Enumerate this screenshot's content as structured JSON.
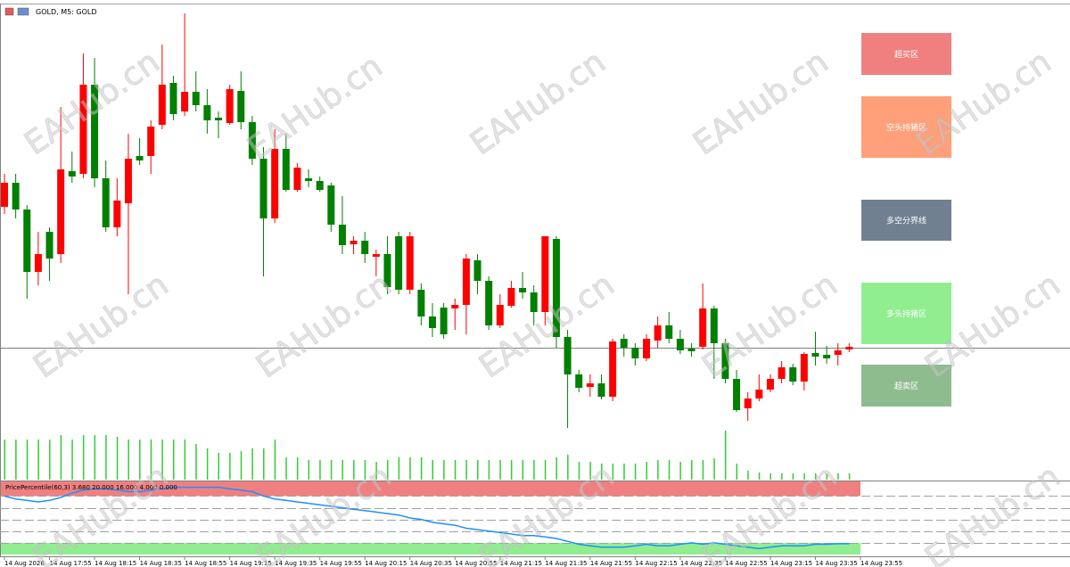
{
  "chart_data": [
    {
      "type": "candlestick",
      "title": "GOLD, M5: GOLD",
      "open": [
        308,
        335,
        305,
        235,
        280,
        255,
        348,
        345,
        445,
        340,
        285,
        312,
        365,
        365,
        400,
        447,
        415,
        437,
        422,
        408,
        402,
        438,
        403,
        362,
        295,
        373,
        327,
        340,
        337,
        332,
        288,
        266,
        270,
        252,
        255,
        275,
        215,
        215,
        185,
        195,
        194,
        198,
        248,
        225,
        175,
        197,
        217,
        212,
        190,
        272,
        162,
        120,
        106,
        110,
        95,
        160,
        150,
        138,
        158,
        175,
        160,
        149,
        151,
        194,
        155,
        115,
        82,
        93,
        103,
        115,
        128,
        112,
        144,
        142,
        142,
        148
      ],
      "high": [
        345,
        345,
        310,
        280,
        285,
        420,
        370,
        480,
        475,
        360,
        340,
        390,
        385,
        405,
        490,
        455,
        525,
        460,
        440,
        415,
        445,
        460,
        410,
        375,
        395,
        390,
        357,
        350,
        342,
        335,
        320,
        275,
        280,
        260,
        275,
        280,
        280,
        222,
        200,
        200,
        205,
        255,
        255,
        230,
        210,
        225,
        235,
        220,
        275,
        275,
        170,
        125,
        120,
        120,
        160,
        165,
        155,
        165,
        185,
        190,
        170,
        155,
        222,
        197,
        160,
        125,
        100,
        120,
        120,
        135,
        132,
        145,
        168,
        152,
        155,
        155
      ],
      "low": [
        300,
        295,
        205,
        220,
        225,
        245,
        335,
        340,
        330,
        280,
        275,
        210,
        355,
        345,
        395,
        405,
        410,
        415,
        390,
        385,
        400,
        395,
        355,
        230,
        290,
        325,
        325,
        330,
        325,
        280,
        255,
        255,
        245,
        230,
        210,
        210,
        210,
        175,
        162,
        160,
        170,
        165,
        210,
        170,
        172,
        195,
        205,
        175,
        175,
        150,
        60,
        100,
        95,
        92,
        90,
        140,
        130,
        135,
        150,
        155,
        143,
        140,
        148,
        115,
        110,
        78,
        68,
        90,
        100,
        110,
        108,
        102,
        130,
        132,
        130,
        145
      ],
      "close": [
        335,
        305,
        235,
        255,
        250,
        350,
        342,
        445,
        340,
        285,
        315,
        362,
        360,
        398,
        445,
        412,
        437,
        422,
        405,
        405,
        440,
        403,
        362,
        295,
        373,
        327,
        352,
        337,
        327,
        288,
        265,
        270,
        255,
        255,
        218,
        215,
        275,
        185,
        172,
        165,
        198,
        250,
        225,
        175,
        198,
        217,
        212,
        190,
        275,
        162,
        120,
        105,
        110,
        95,
        157,
        150,
        138,
        160,
        175,
        160,
        147,
        146,
        194,
        155,
        115,
        80,
        93,
        103,
        115,
        128,
        112,
        143,
        140,
        138,
        147,
        151
      ],
      "up_color": "#ff0000",
      "down_color": "#008000",
      "ylim": [
        0,
        535
      ],
      "xlim": [
        0,
        76
      ],
      "price_line": 150
    },
    {
      "type": "bar",
      "values": [
        45,
        45,
        45,
        45,
        45,
        50,
        45,
        50,
        50,
        50,
        48,
        45,
        45,
        45,
        45,
        45,
        45,
        40,
        35,
        30,
        30,
        32,
        35,
        35,
        45,
        25,
        25,
        22,
        22,
        22,
        22,
        22,
        22,
        20,
        22,
        25,
        25,
        25,
        22,
        22,
        22,
        22,
        22,
        22,
        22,
        22,
        22,
        22,
        22,
        25,
        28,
        20,
        20,
        18,
        18,
        18,
        18,
        20,
        22,
        22,
        20,
        22,
        22,
        24,
        55,
        18,
        10,
        8,
        7,
        7,
        7,
        7,
        7,
        7,
        7,
        7
      ],
      "color": "#32cd32",
      "ylim": [
        0,
        60
      ],
      "xlim": [
        0,
        76
      ]
    },
    {
      "type": "line",
      "title": "PricePercentile(60,3) 3.680 20.000 16.000 4.000 0.000",
      "values": [
        20,
        19,
        18.5,
        18,
        18.5,
        19.5,
        21,
        22,
        22.5,
        22.5,
        22,
        21.5,
        21.5,
        22,
        22.5,
        23,
        23,
        23,
        23,
        23,
        22.5,
        22,
        21.5,
        20,
        19,
        18.5,
        18,
        17.5,
        17,
        16.5,
        16,
        15.5,
        15,
        14.5,
        14,
        13.5,
        12.5,
        12,
        11,
        10.5,
        10,
        9,
        8.5,
        8,
        7.5,
        7,
        6.5,
        6.5,
        6,
        5.5,
        4.5,
        3.5,
        3,
        2.5,
        2.5,
        2.5,
        3,
        3.5,
        3,
        3,
        3.5,
        4,
        3.5,
        4,
        3.5,
        3,
        2.5,
        2,
        2.5,
        3,
        3,
        3,
        3.5,
        3.5,
        3.7,
        3.68
      ],
      "color": "#1e90ff",
      "ylim": [
        0,
        25
      ],
      "xlim": [
        0,
        76
      ],
      "levels": [
        20,
        16,
        12,
        8,
        4
      ],
      "upper_band_color": "#f08080",
      "lower_band_color": "#90ee90",
      "xticks": [
        {
          "value": 0,
          "label": "14 Aug 2026"
        },
        {
          "value": 4,
          "label": "14 Aug 17:55"
        },
        {
          "value": 8,
          "label": "14 Aug 18:15"
        },
        {
          "value": 12,
          "label": "14 Aug 18:35"
        },
        {
          "value": 16,
          "label": "14 Aug 18:55"
        },
        {
          "value": 20,
          "label": "14 Aug 19:15"
        },
        {
          "value": 24,
          "label": "14 Aug 19:35"
        },
        {
          "value": 28,
          "label": "14 Aug 19:55"
        },
        {
          "value": 32,
          "label": "14 Aug 20:15"
        },
        {
          "value": 36,
          "label": "14 Aug 20:35"
        },
        {
          "value": 40,
          "label": "14 Aug 20:55"
        },
        {
          "value": 44,
          "label": "14 Aug 21:15"
        },
        {
          "value": 48,
          "label": "14 Aug 21:35"
        },
        {
          "value": 52,
          "label": "14 Aug 21:55"
        },
        {
          "value": 56,
          "label": "14 Aug 22:15"
        },
        {
          "value": 60,
          "label": "14 Aug 22:35"
        },
        {
          "value": 64,
          "label": "14 Aug 22:55"
        },
        {
          "value": 68,
          "label": "14 Aug 23:15"
        },
        {
          "value": 72,
          "label": "14 Aug 23:35"
        },
        {
          "value": 76,
          "label": "14 Aug 23:55"
        }
      ]
    }
  ],
  "zones": [
    {
      "label": "超买区",
      "color": "#f08080"
    },
    {
      "label": "空头持猪区",
      "color": "#ffa07a"
    },
    {
      "label": "多空分界线",
      "color": "#708090"
    },
    {
      "label": "多头持猪区",
      "color": "#90ee90"
    },
    {
      "label": "超卖区",
      "color": "#8fbc8f"
    }
  ],
  "watermark": "EAHub.cn"
}
